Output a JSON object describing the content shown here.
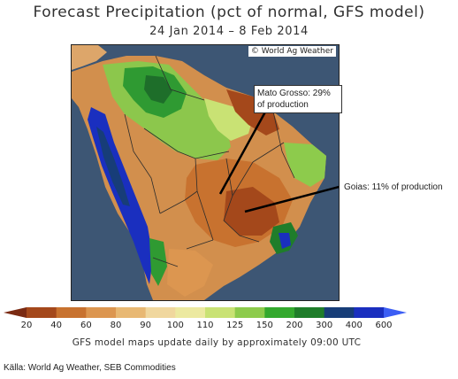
{
  "header": {
    "title": "Forecast Precipitation (pct of normal, GFS model)",
    "date_range": "24 Jan 2014 – 8 Feb 2014"
  },
  "map": {
    "credit": "© World Ag Weather",
    "annotations": {
      "mato_grosso": "Mato Grosso: 29% of production",
      "goias": "Goias: 11% of production"
    }
  },
  "colorbar": {
    "ticks": [
      "20",
      "40",
      "60",
      "80",
      "90",
      "100",
      "110",
      "125",
      "150",
      "200",
      "300",
      "400",
      "600"
    ],
    "colors": [
      "#7a2a12",
      "#a4481b",
      "#c8722f",
      "#dc9650",
      "#e8b873",
      "#f0d79e",
      "#ece9a0",
      "#c9e274",
      "#8dcb4c",
      "#34a92e",
      "#1f7d2a",
      "#173d78",
      "#1a2fbf",
      "#3c5ef4"
    ]
  },
  "footer": {
    "update_note": "GFS model maps update daily by approximately 09:00 UTC",
    "source": "Källa: World Ag Weather, SEB Commodities"
  }
}
